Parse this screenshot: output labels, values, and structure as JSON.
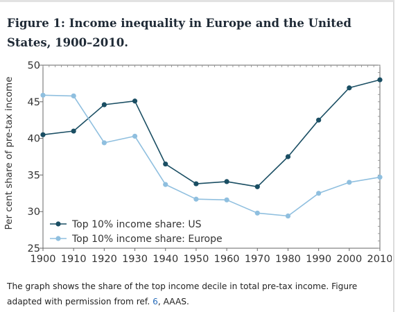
{
  "figure": {
    "title": "Figure 1: Income inequality in Europe and the United States, 1900–2010."
  },
  "caption": {
    "text_before": "The graph shows the share of the top income decile in total pre-tax income. Figure adapted with permission from ref. ",
    "ref_number": "6",
    "text_after": ", AAAS."
  },
  "chart_data": {
    "type": "line",
    "title": "Figure 1: Income inequality in Europe and the United States, 1900–2010.",
    "xlabel": "",
    "ylabel": "Per cent share of pre-tax income",
    "x": [
      1900,
      1910,
      1920,
      1930,
      1940,
      1950,
      1960,
      1970,
      1980,
      1990,
      2000,
      2010
    ],
    "xticks": [
      "1900",
      "1910",
      "1920",
      "1930",
      "1940",
      "1950",
      "1960",
      "1970",
      "1980",
      "1990",
      "2000",
      "2010"
    ],
    "ylim": [
      25,
      50
    ],
    "yticks": [
      "25",
      "30",
      "35",
      "40",
      "45",
      "50"
    ],
    "grid": false,
    "legend_position": "bottom-left",
    "series": [
      {
        "name": "Top 10% income share: US",
        "color": "#1a4e63",
        "values": [
          40.5,
          41.0,
          44.6,
          45.1,
          36.5,
          33.8,
          34.1,
          33.4,
          37.5,
          42.5,
          46.9,
          48.0
        ]
      },
      {
        "name": "Top 10% income share: Europe",
        "color": "#8fbfdf",
        "values": [
          45.9,
          45.8,
          39.4,
          40.3,
          33.7,
          31.7,
          31.6,
          29.8,
          29.4,
          32.5,
          34.0,
          34.7
        ]
      }
    ]
  }
}
